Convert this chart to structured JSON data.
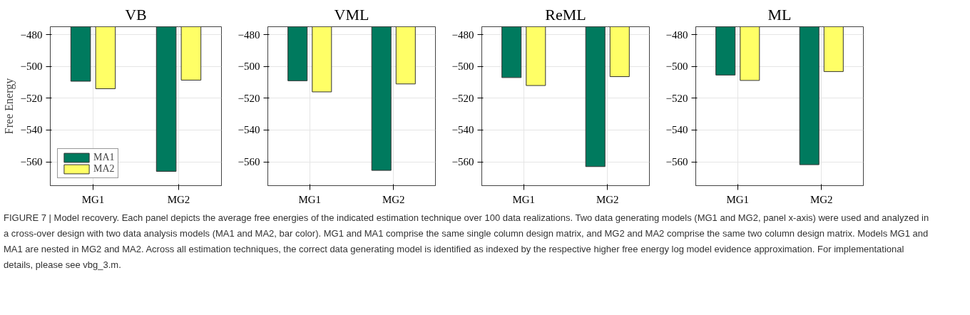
{
  "chart_data": [
    {
      "type": "bar",
      "title": "VB",
      "ylabel": "Free Energy",
      "categories": [
        "MG1",
        "MG2"
      ],
      "ylim": [
        -575,
        -475
      ],
      "yticks": [
        -480,
        -500,
        -520,
        -540,
        -560
      ],
      "grid": true,
      "legend": "bottom left",
      "series": [
        {
          "name": "MA1",
          "color": "#007a5e",
          "values": [
            -509.3,
            -566
          ]
        },
        {
          "name": "MA2",
          "color": "#ffff66",
          "values": [
            -514,
            -508.6
          ]
        }
      ]
    },
    {
      "type": "bar",
      "title": "VML",
      "categories": [
        "MG1",
        "MG2"
      ],
      "ylim": [
        -575,
        -475
      ],
      "yticks": [
        -480,
        -500,
        -520,
        -540,
        -560
      ],
      "grid": true,
      "series": [
        {
          "color": "#007a5e",
          "values": [
            -509,
            -565.4
          ]
        },
        {
          "color": "#ffff66",
          "values": [
            -516,
            -511
          ]
        }
      ]
    },
    {
      "type": "bar",
      "title": "ReML",
      "categories": [
        "MG1",
        "MG2"
      ],
      "ylim": [
        -575,
        -475
      ],
      "yticks": [
        -480,
        -500,
        -520,
        -540,
        -560
      ],
      "grid": true,
      "series": [
        {
          "color": "#007a5e",
          "values": [
            -507,
            -563
          ]
        },
        {
          "color": "#ffff66",
          "values": [
            -512,
            -506.4
          ]
        }
      ]
    },
    {
      "type": "bar",
      "title": "ML",
      "categories": [
        "MG1",
        "MG2"
      ],
      "ylim": [
        -575,
        -475
      ],
      "yticks": [
        -480,
        -500,
        -520,
        -540,
        -560
      ],
      "grid": true,
      "series": [
        {
          "color": "#007a5e",
          "values": [
            -505.4,
            -561.8
          ]
        },
        {
          "color": "#ffff66",
          "values": [
            -508.8,
            -503.2
          ]
        }
      ],
      "annotations": [
        "FIGURE 7 | Model recovery. Each panel depicts the average free energies of the indicated estimation technique over 100 data realizations. Two data generating models (MG1 and MG2, panel x-axis) were used and analyzed in a cross-over design with two data analysis models (MA1 and MA2, bar color). MG1 and MA1 comprise the same single column design matrix, and MG2 and MA2 comprise the same two column design matrix. Models MG1 and MA1 are nested in MG2 and MA2. Across all estimation techniques, the correct data generating model is identified as indexed by the respective higher free energy log model evidence approximation. For implementational details, please see vbg_3.m."
      ]
    }
  ]
}
